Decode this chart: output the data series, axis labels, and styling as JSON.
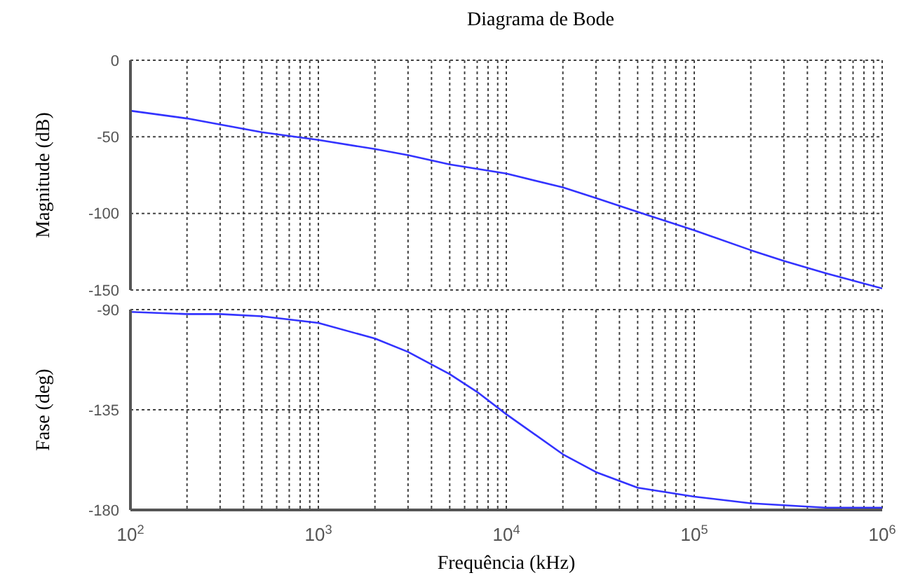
{
  "chart_data": [
    {
      "type": "line",
      "title": "Diagrama de Bode",
      "ylabel": "Magnitude (dB)",
      "log": "x",
      "grid": true,
      "marker": "none",
      "line_style": "solid",
      "tick_labels": "y",
      "xlim": [
        100,
        1000000
      ],
      "xticks": [
        {
          "value": 100,
          "label": null
        },
        {
          "value": 200,
          "label": null
        },
        {
          "value": 300,
          "label": null
        },
        {
          "value": 400,
          "label": null
        },
        {
          "value": 500,
          "label": null
        },
        {
          "value": 600,
          "label": null
        },
        {
          "value": 700,
          "label": null
        },
        {
          "value": 800,
          "label": null
        },
        {
          "value": 900,
          "label": null
        },
        {
          "value": 1000,
          "label": null
        },
        {
          "value": 2000,
          "label": null
        },
        {
          "value": 3000,
          "label": null
        },
        {
          "value": 4000,
          "label": null
        },
        {
          "value": 5000,
          "label": null
        },
        {
          "value": 6000,
          "label": null
        },
        {
          "value": 7000,
          "label": null
        },
        {
          "value": 8000,
          "label": null
        },
        {
          "value": 9000,
          "label": null
        },
        {
          "value": 10000,
          "label": null
        },
        {
          "value": 20000,
          "label": null
        },
        {
          "value": 30000,
          "label": null
        },
        {
          "value": 40000,
          "label": null
        },
        {
          "value": 50000,
          "label": null
        },
        {
          "value": 60000,
          "label": null
        },
        {
          "value": 70000,
          "label": null
        },
        {
          "value": 80000,
          "label": null
        },
        {
          "value": 90000,
          "label": null
        },
        {
          "value": 100000,
          "label": null
        },
        {
          "value": 200000,
          "label": null
        },
        {
          "value": 300000,
          "label": null
        },
        {
          "value": 400000,
          "label": null
        },
        {
          "value": 500000,
          "label": null
        },
        {
          "value": 600000,
          "label": null
        },
        {
          "value": 700000,
          "label": null
        },
        {
          "value": 800000,
          "label": null
        },
        {
          "value": 900000,
          "label": null
        },
        {
          "value": 1000000,
          "label": null
        }
      ],
      "ylim": [
        -150,
        0
      ],
      "yticks": [
        0,
        -50,
        -100,
        -150
      ],
      "x": [
        100,
        200,
        300,
        500,
        1000,
        2000,
        3000,
        5000,
        10000,
        20000,
        30000,
        50000,
        100000,
        200000,
        300000,
        500000,
        1000000
      ],
      "series": [
        {
          "color": "#3333ff",
          "values": [
            -33,
            -38,
            -42,
            -47,
            -52,
            -58,
            -62,
            -68,
            -74,
            -83,
            -90,
            -99,
            -111,
            -124,
            -131,
            -139,
            -149
          ]
        }
      ]
    },
    {
      "type": "line",
      "ylabel": "Fase (deg)",
      "xlabel": "Frequência (kHz)",
      "log": "x",
      "grid": true,
      "marker": "none",
      "line_style": "solid",
      "xlim": [
        100,
        1000000
      ],
      "xticks": [
        {
          "value": 100,
          "label": "10$^{2}$"
        },
        {
          "value": 200,
          "label": null
        },
        {
          "value": 300,
          "label": null
        },
        {
          "value": 400,
          "label": null
        },
        {
          "value": 500,
          "label": null
        },
        {
          "value": 600,
          "label": null
        },
        {
          "value": 700,
          "label": null
        },
        {
          "value": 800,
          "label": null
        },
        {
          "value": 900,
          "label": null
        },
        {
          "value": 1000,
          "label": "10$^{3}$"
        },
        {
          "value": 2000,
          "label": null
        },
        {
          "value": 3000,
          "label": null
        },
        {
          "value": 4000,
          "label": null
        },
        {
          "value": 5000,
          "label": null
        },
        {
          "value": 6000,
          "label": null
        },
        {
          "value": 7000,
          "label": null
        },
        {
          "value": 8000,
          "label": null
        },
        {
          "value": 9000,
          "label": null
        },
        {
          "value": 10000,
          "label": "10$^{4}$"
        },
        {
          "value": 20000,
          "label": null
        },
        {
          "value": 30000,
          "label": null
        },
        {
          "value": 40000,
          "label": null
        },
        {
          "value": 50000,
          "label": null
        },
        {
          "value": 60000,
          "label": null
        },
        {
          "value": 70000,
          "label": null
        },
        {
          "value": 80000,
          "label": null
        },
        {
          "value": 90000,
          "label": null
        },
        {
          "value": 100000,
          "label": "10$^{5}$"
        },
        {
          "value": 200000,
          "label": null
        },
        {
          "value": 300000,
          "label": null
        },
        {
          "value": 400000,
          "label": null
        },
        {
          "value": 500000,
          "label": null
        },
        {
          "value": 600000,
          "label": null
        },
        {
          "value": 700000,
          "label": null
        },
        {
          "value": 800000,
          "label": null
        },
        {
          "value": 900000,
          "label": null
        },
        {
          "value": 1000000,
          "label": "10$^{6}$"
        }
      ],
      "ylim": [
        -180,
        -90
      ],
      "yticks": [
        -90,
        -135,
        -180
      ],
      "x": [
        100,
        200,
        300,
        500,
        1000,
        2000,
        3000,
        5000,
        7000,
        10000,
        20000,
        30000,
        50000,
        100000,
        200000,
        500000,
        1000000
      ],
      "series": [
        {
          "color": "#3333ff",
          "values": [
            -91,
            -92,
            -92,
            -93,
            -96,
            -103,
            -109,
            -119,
            -127,
            -137,
            -155,
            -163,
            -170,
            -174,
            -177,
            -179,
            -179
          ]
        }
      ]
    }
  ]
}
